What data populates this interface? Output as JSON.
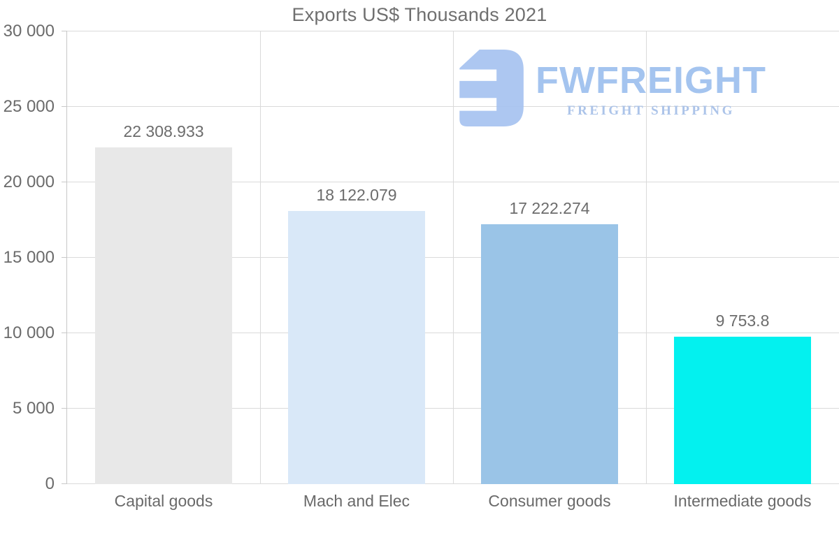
{
  "title": "Exports US$ Thousands 2021",
  "logo": {
    "brand": "FWFREIGHT",
    "tagline": "FREIGHT SHIPPING",
    "icon": "fwfreight-mark",
    "color": "#a7c3f0"
  },
  "chart_data": {
    "type": "bar",
    "title": "Exports US$ Thousands 2021",
    "categories": [
      "Capital goods",
      "Mach and Elec",
      "Consumer goods",
      "Intermediate goods"
    ],
    "values": [
      22308.933,
      18122.079,
      17222.274,
      9753.8
    ],
    "value_labels": [
      "22 308.933",
      "18 122.079",
      "17 222.274",
      "9 753.8"
    ],
    "bar_colors": [
      "#e8e8e8",
      "#d9e8f8",
      "#9ac4e7",
      "#03f1ef"
    ],
    "xlabel": "",
    "ylabel": "",
    "ylim": [
      0,
      30000
    ],
    "ytick_interval": 5000,
    "ytick_labels": [
      "0",
      "5 000",
      "10 000",
      "15 000",
      "20 000",
      "25 000",
      "30 000"
    ],
    "grid": "horizontal gridlines + vertical category separators",
    "legend": "none",
    "colors": {
      "grid": "#dadada",
      "axis": "#c8c8c8",
      "text": "#6b6b6b"
    }
  }
}
